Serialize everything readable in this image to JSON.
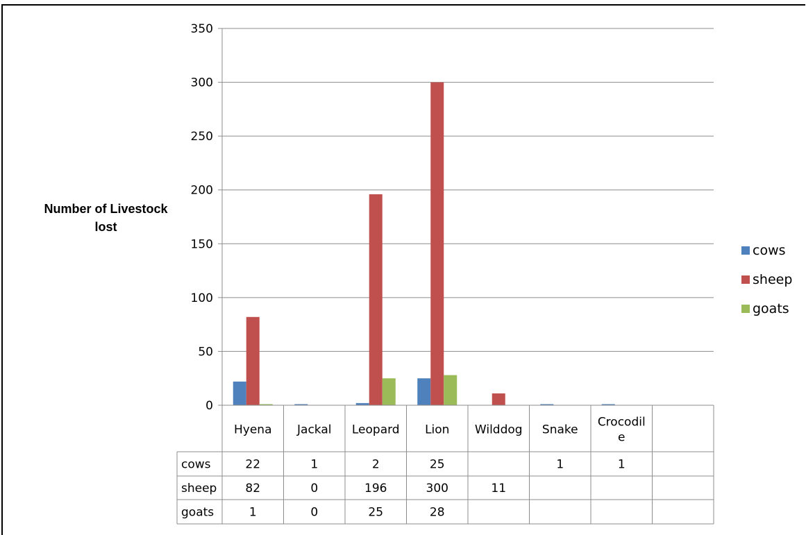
{
  "chart_data": {
    "type": "bar",
    "categories": [
      "Hyena",
      "Jackal",
      "Leopard",
      "Lion",
      "Wilddog",
      "Snake",
      "Crocodil\ne",
      ""
    ],
    "series": [
      {
        "name": "cows",
        "color": "#4f81bd",
        "values": [
          22,
          1,
          2,
          25,
          null,
          1,
          1,
          null
        ]
      },
      {
        "name": "sheep",
        "color": "#c0504d",
        "values": [
          82,
          0,
          196,
          300,
          11,
          null,
          null,
          null
        ]
      },
      {
        "name": "goats",
        "color": "#9bbb59",
        "values": [
          1,
          0,
          25,
          28,
          null,
          null,
          null,
          null
        ]
      }
    ],
    "ylabel": "Number of Livestock\nlost",
    "xlabel": "",
    "title": "",
    "ylim": [
      0,
      350
    ],
    "yticks": [
      0,
      50,
      100,
      150,
      200,
      250,
      300,
      350
    ],
    "grid": true,
    "legend": "right",
    "data_table": true
  }
}
